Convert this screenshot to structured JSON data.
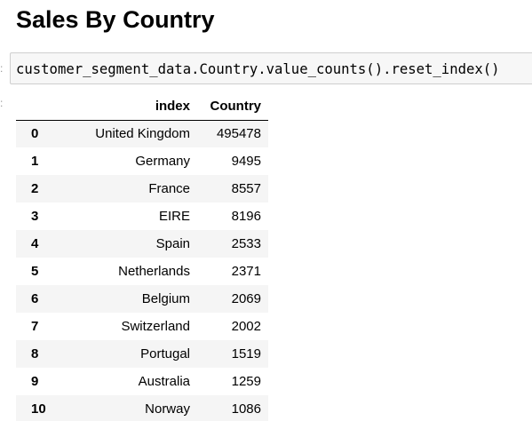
{
  "notebook": {
    "heading": "Sales By Country",
    "code": "customer_segment_data.Country.value_counts().reset_index()"
  },
  "table": {
    "columns": [
      "",
      "index",
      "Country"
    ],
    "rows": [
      {
        "idx": "0",
        "country": "United Kingdom",
        "count": "495478"
      },
      {
        "idx": "1",
        "country": "Germany",
        "count": "9495"
      },
      {
        "idx": "2",
        "country": "France",
        "count": "8557"
      },
      {
        "idx": "3",
        "country": "EIRE",
        "count": "8196"
      },
      {
        "idx": "4",
        "country": "Spain",
        "count": "2533"
      },
      {
        "idx": "5",
        "country": "Netherlands",
        "count": "2371"
      },
      {
        "idx": "6",
        "country": "Belgium",
        "count": "2069"
      },
      {
        "idx": "7",
        "country": "Switzerland",
        "count": "2002"
      },
      {
        "idx": "8",
        "country": "Portugal",
        "count": "1519"
      },
      {
        "idx": "9",
        "country": "Australia",
        "count": "1259"
      },
      {
        "idx": "10",
        "country": "Norway",
        "count": "1086"
      }
    ]
  }
}
